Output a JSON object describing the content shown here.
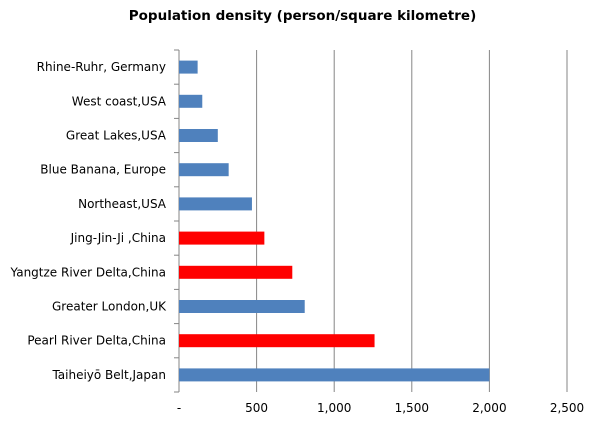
{
  "chart_data": {
    "type": "bar",
    "orientation": "horizontal",
    "title": "Population density (person/square kilometre)",
    "xlabel": "",
    "ylabel": "",
    "categories": [
      "Rhine-Ruhr, Germany",
      "West coast,USA",
      "Great Lakes,USA",
      "Blue Banana, Europe",
      "Northeast,USA",
      "Jing-Jin-Ji ,China",
      "Yangtze River Delta,China",
      "Greater London,UK",
      "Pearl River Delta,China",
      "Taiheiyō Belt,Japan"
    ],
    "values": [
      120,
      150,
      250,
      320,
      470,
      550,
      730,
      810,
      1260,
      2000
    ],
    "bar_colors": [
      "#4f81bd",
      "#4f81bd",
      "#4f81bd",
      "#4f81bd",
      "#4f81bd",
      "#ff0000",
      "#ff0000",
      "#4f81bd",
      "#ff0000",
      "#4f81bd"
    ],
    "xlim": [
      0,
      2500
    ],
    "xticks": [
      0,
      500,
      1000,
      1500,
      2000,
      2500
    ],
    "xtick_labels": [
      "-",
      "500",
      "1,000",
      "1,500",
      "2,000",
      "2,500"
    ],
    "grid": true
  },
  "colors": {
    "default_bar": "#4f81bd",
    "highlight_bar": "#ff0000",
    "gridline": "#868686"
  }
}
